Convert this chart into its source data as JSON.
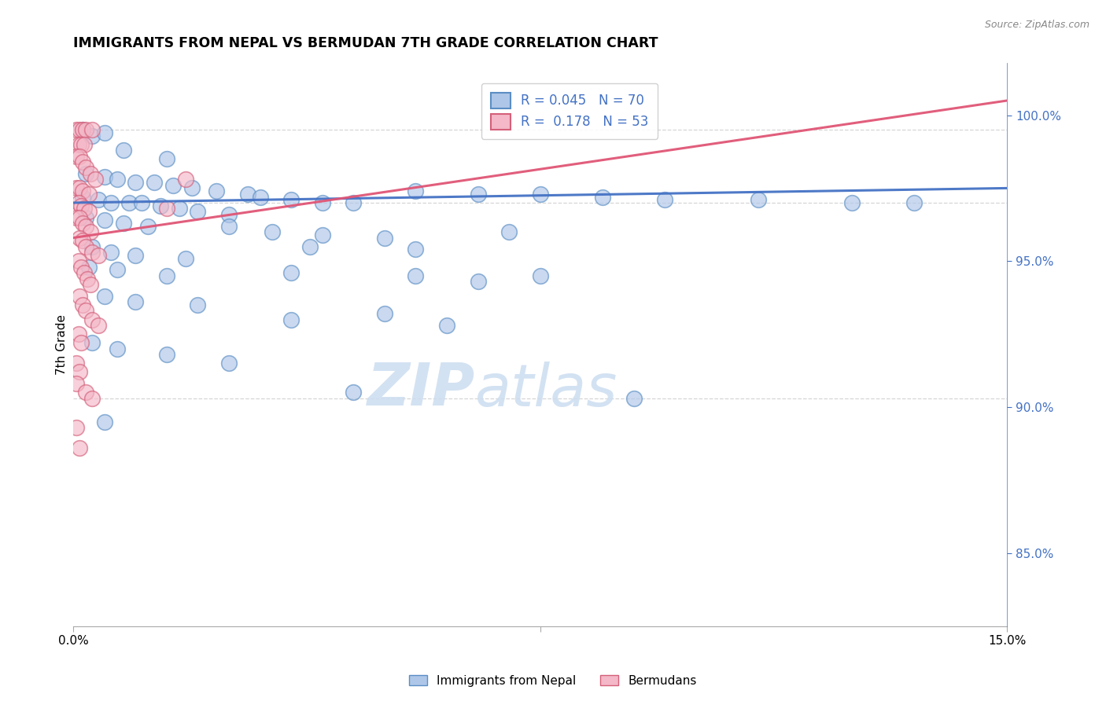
{
  "title": "IMMIGRANTS FROM NEPAL VS BERMUDAN 7TH GRADE CORRELATION CHART",
  "source_text": "Source: ZipAtlas.com",
  "ylabel": "7th Grade",
  "xmin": 0.0,
  "xmax": 15.0,
  "ymin": 82.5,
  "ymax": 101.8,
  "legend_label1": "Immigrants from Nepal",
  "legend_label2": "Bermudans",
  "R1": 0.045,
  "N1": 70,
  "R2": 0.178,
  "N2": 53,
  "color_blue": "#aec6e8",
  "color_pink": "#f4b8c8",
  "color_blue_edge": "#5b8ec4",
  "color_pink_edge": "#d4607a",
  "trendline_blue": "#4472c4",
  "trendline_pink": "#e05575",
  "watermark_color": "#ccddf0",
  "ytick_color": "#4472c4",
  "grid_color": "#cccccc",
  "blue_trend_y0": 97.0,
  "blue_trend_y1": 97.5,
  "pink_trend_y0": 95.8,
  "pink_trend_y1": 100.5,
  "dashed_y1": 99.5,
  "dashed_y2": 97.0,
  "dashed_y3": 90.3,
  "blue_scatter": [
    [
      0.15,
      99.5
    ],
    [
      0.3,
      99.3
    ],
    [
      0.5,
      99.4
    ],
    [
      0.8,
      98.8
    ],
    [
      1.5,
      98.5
    ],
    [
      0.2,
      98.0
    ],
    [
      0.5,
      97.9
    ],
    [
      0.7,
      97.8
    ],
    [
      1.0,
      97.7
    ],
    [
      1.3,
      97.7
    ],
    [
      1.6,
      97.6
    ],
    [
      1.9,
      97.5
    ],
    [
      2.3,
      97.4
    ],
    [
      2.8,
      97.3
    ],
    [
      0.15,
      97.2
    ],
    [
      0.4,
      97.1
    ],
    [
      0.6,
      97.0
    ],
    [
      0.9,
      97.0
    ],
    [
      1.1,
      97.0
    ],
    [
      1.4,
      96.9
    ],
    [
      1.7,
      96.8
    ],
    [
      2.0,
      96.7
    ],
    [
      2.5,
      96.6
    ],
    [
      0.2,
      96.5
    ],
    [
      0.5,
      96.4
    ],
    [
      0.8,
      96.3
    ],
    [
      1.2,
      96.2
    ],
    [
      3.0,
      97.2
    ],
    [
      3.5,
      97.1
    ],
    [
      4.0,
      97.0
    ],
    [
      4.5,
      97.0
    ],
    [
      5.5,
      97.4
    ],
    [
      6.5,
      97.3
    ],
    [
      7.5,
      97.3
    ],
    [
      8.5,
      97.2
    ],
    [
      9.5,
      97.1
    ],
    [
      11.0,
      97.1
    ],
    [
      12.5,
      97.0
    ],
    [
      13.5,
      97.0
    ],
    [
      2.5,
      96.2
    ],
    [
      3.2,
      96.0
    ],
    [
      4.0,
      95.9
    ],
    [
      5.0,
      95.8
    ],
    [
      0.3,
      95.5
    ],
    [
      0.6,
      95.3
    ],
    [
      1.0,
      95.2
    ],
    [
      1.8,
      95.1
    ],
    [
      3.8,
      95.5
    ],
    [
      5.5,
      95.4
    ],
    [
      7.0,
      96.0
    ],
    [
      0.25,
      94.8
    ],
    [
      0.7,
      94.7
    ],
    [
      1.5,
      94.5
    ],
    [
      3.5,
      94.6
    ],
    [
      5.5,
      94.5
    ],
    [
      6.5,
      94.3
    ],
    [
      7.5,
      94.5
    ],
    [
      0.5,
      93.8
    ],
    [
      1.0,
      93.6
    ],
    [
      2.0,
      93.5
    ],
    [
      3.5,
      93.0
    ],
    [
      5.0,
      93.2
    ],
    [
      6.0,
      92.8
    ],
    [
      0.3,
      92.2
    ],
    [
      0.7,
      92.0
    ],
    [
      1.5,
      91.8
    ],
    [
      2.5,
      91.5
    ],
    [
      4.5,
      90.5
    ],
    [
      9.0,
      90.3
    ],
    [
      0.5,
      89.5
    ]
  ],
  "pink_scatter": [
    [
      0.05,
      99.5
    ],
    [
      0.1,
      99.5
    ],
    [
      0.15,
      99.5
    ],
    [
      0.2,
      99.5
    ],
    [
      0.3,
      99.5
    ],
    [
      0.08,
      99.0
    ],
    [
      0.12,
      99.0
    ],
    [
      0.18,
      99.0
    ],
    [
      0.05,
      98.6
    ],
    [
      0.1,
      98.6
    ],
    [
      0.15,
      98.4
    ],
    [
      0.2,
      98.2
    ],
    [
      0.28,
      98.0
    ],
    [
      0.35,
      97.8
    ],
    [
      0.05,
      97.5
    ],
    [
      0.1,
      97.5
    ],
    [
      0.15,
      97.4
    ],
    [
      0.25,
      97.3
    ],
    [
      0.08,
      97.0
    ],
    [
      0.12,
      96.9
    ],
    [
      0.18,
      96.8
    ],
    [
      0.25,
      96.7
    ],
    [
      0.05,
      96.5
    ],
    [
      0.1,
      96.5
    ],
    [
      0.15,
      96.3
    ],
    [
      0.2,
      96.2
    ],
    [
      0.28,
      96.0
    ],
    [
      0.1,
      95.8
    ],
    [
      0.15,
      95.7
    ],
    [
      0.2,
      95.5
    ],
    [
      0.3,
      95.3
    ],
    [
      0.4,
      95.2
    ],
    [
      0.08,
      95.0
    ],
    [
      0.12,
      94.8
    ],
    [
      0.18,
      94.6
    ],
    [
      0.22,
      94.4
    ],
    [
      0.28,
      94.2
    ],
    [
      0.1,
      93.8
    ],
    [
      0.15,
      93.5
    ],
    [
      0.2,
      93.3
    ],
    [
      0.3,
      93.0
    ],
    [
      0.4,
      92.8
    ],
    [
      0.08,
      92.5
    ],
    [
      0.12,
      92.2
    ],
    [
      0.05,
      91.5
    ],
    [
      0.1,
      91.2
    ],
    [
      0.05,
      90.8
    ],
    [
      0.2,
      90.5
    ],
    [
      0.3,
      90.3
    ],
    [
      0.05,
      89.3
    ],
    [
      0.1,
      88.6
    ],
    [
      1.8,
      97.8
    ],
    [
      1.5,
      96.8
    ]
  ]
}
